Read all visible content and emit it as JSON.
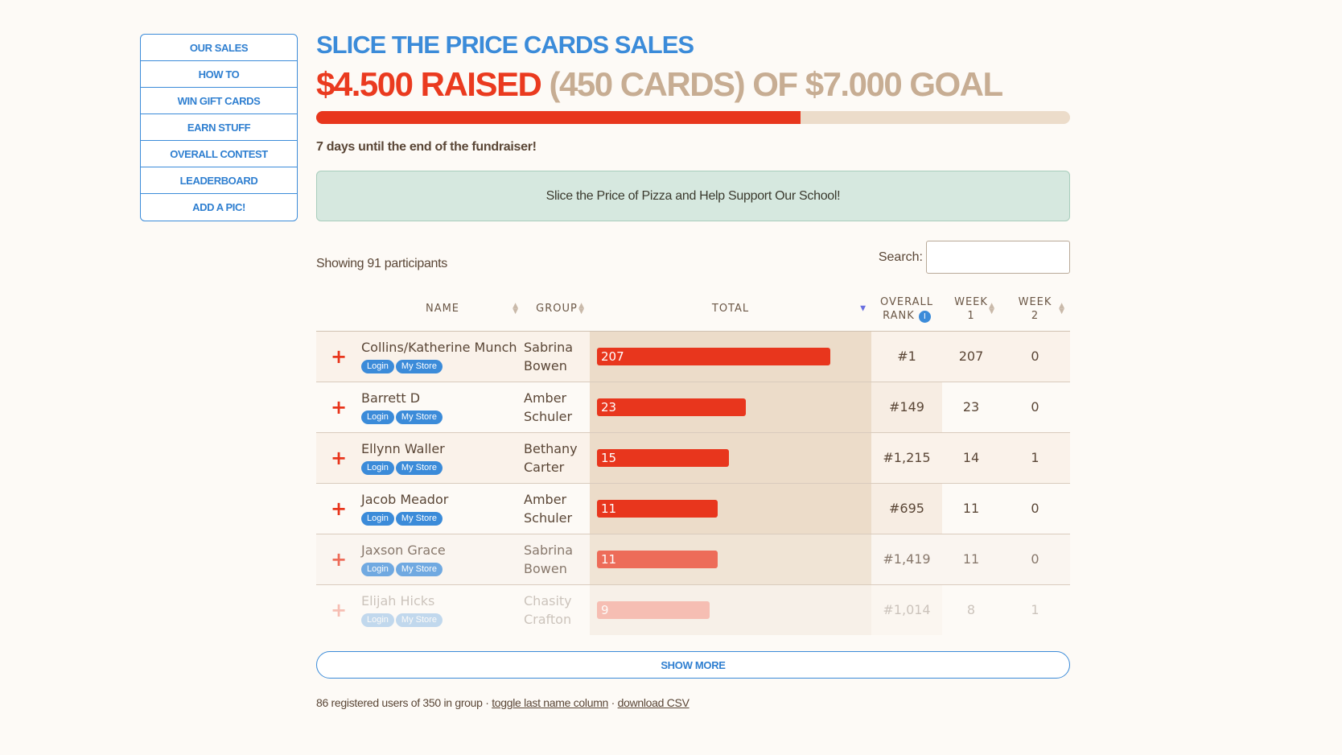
{
  "nav": {
    "items": [
      "OUR SALES",
      "HOW TO",
      "WIN GIFT CARDS",
      "EARN STUFF",
      "OVERALL CONTEST",
      "LEADERBOARD",
      "ADD A PIC!"
    ]
  },
  "header": {
    "title": "SLICE THE PRICE CARDS SALES",
    "raised_amount": "$4.500 RAISED",
    "raised_rest": " (450 CARDS) OF $7.000 GOAL",
    "progress_fraction": 0.643
  },
  "countdown": "7 days until the end of the fundraiser!",
  "banner": "Slice the Price of Pizza and Help Support Our School!",
  "table": {
    "showing": "Showing 91 participants",
    "search_label": "Search:",
    "search_value": "",
    "columns": {
      "name": "NAME",
      "group": "GROUP",
      "total": "TOTAL",
      "overall_rank_1": "OVERALL",
      "overall_rank_2": "RANK",
      "rank_info": "i",
      "week1_1": "WEEK",
      "week1_2": "1",
      "week2_1": "WEEK",
      "week2_2": "2"
    },
    "login_label": "Login",
    "store_label": "My Store",
    "expand_icon": "+",
    "max_total": 207,
    "rows": [
      {
        "name": "Collins/Katherine Munch",
        "group1": "Sabrina",
        "group2": "Bowen",
        "total": 207,
        "total_label": "207",
        "rank": "#1",
        "week1": "207",
        "week2": "0"
      },
      {
        "name": "Barrett D",
        "group1": "Amber",
        "group2": "Schuler",
        "total": 23,
        "total_label": "23",
        "rank": "#149",
        "week1": "23",
        "week2": "0"
      },
      {
        "name": "Ellynn Waller",
        "group1": "Bethany",
        "group2": "Carter",
        "total": 15,
        "total_label": "15",
        "rank": "#1,215",
        "week1": "14",
        "week2": "1"
      },
      {
        "name": "Jacob Meador",
        "group1": "Amber",
        "group2": "Schuler",
        "total": 11,
        "total_label": "11",
        "rank": "#695",
        "week1": "11",
        "week2": "0"
      },
      {
        "name": "Jaxson Grace",
        "group1": "Sabrina",
        "group2": "Bowen",
        "total": 11,
        "total_label": "11",
        "rank": "#1,419",
        "week1": "11",
        "week2": "0"
      },
      {
        "name": "Elijah Hicks",
        "group1": "Chasity",
        "group2": "Crafton",
        "total": 9,
        "total_label": "9",
        "rank": "#1,014",
        "week1": "8",
        "week2": "1"
      }
    ]
  },
  "show_more": "SHOW MORE",
  "footer": {
    "text": "86 registered users of 350 in group · ",
    "toggle_link": "toggle last name column",
    "separator": " · ",
    "csv_link": "download CSV"
  }
}
